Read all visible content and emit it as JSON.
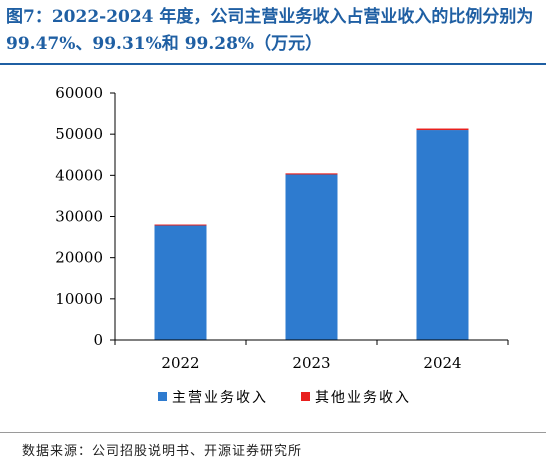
{
  "title": "图7：2022-2024 年度，公司主营业务收入占营业收入的比例分别为 99.47%、99.31%和 99.28%（万元）",
  "source": "数据来源：公司招股说明书、开源证券研究所",
  "colors": {
    "main": "#2e7bcf",
    "other": "#e8201e"
  },
  "chart_data": {
    "type": "bar",
    "stacked": true,
    "categories": [
      "2022",
      "2023",
      "2024"
    ],
    "series": [
      {
        "name": "主营业务收入",
        "values": [
          27900,
          40200,
          51000
        ]
      },
      {
        "name": "其他业务收入",
        "values": [
          150,
          280,
          370
        ]
      }
    ],
    "ylim": [
      0,
      60000
    ],
    "yticks": [
      "0",
      "10000",
      "20000",
      "30000",
      "40000",
      "50000",
      "60000"
    ],
    "legend_position": "bottom"
  }
}
